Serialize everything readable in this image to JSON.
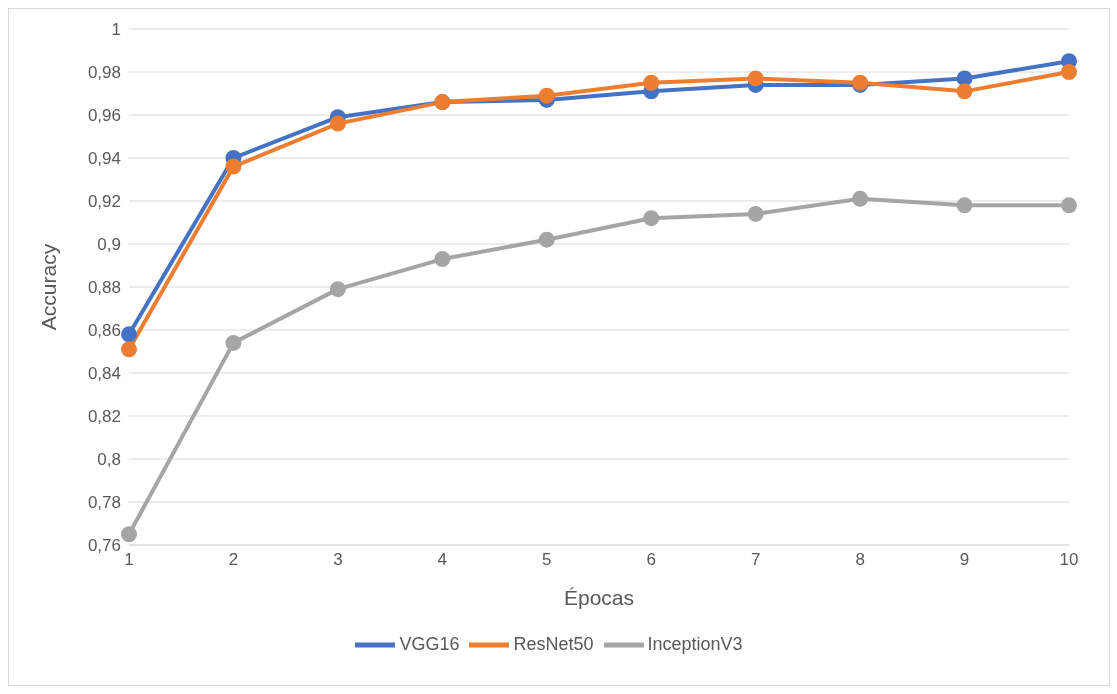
{
  "chart_data": {
    "type": "line",
    "xlabel": "Épocas",
    "ylabel": "Accuracy",
    "categories": [
      "1",
      "2",
      "3",
      "4",
      "5",
      "6",
      "7",
      "8",
      "9",
      "10"
    ],
    "series": [
      {
        "name": "VGG16",
        "color": "#4472c4",
        "values": [
          0.858,
          0.94,
          0.959,
          0.966,
          0.967,
          0.971,
          0.974,
          0.974,
          0.977,
          0.985
        ]
      },
      {
        "name": "ResNet50",
        "color": "#ed7d31",
        "values": [
          0.851,
          0.936,
          0.956,
          0.966,
          0.969,
          0.975,
          0.977,
          0.975,
          0.971,
          0.98
        ]
      },
      {
        "name": "InceptionV3",
        "color": "#a5a5a5",
        "values": [
          0.765,
          0.854,
          0.879,
          0.893,
          0.902,
          0.912,
          0.914,
          0.921,
          0.918,
          0.918
        ]
      }
    ],
    "ylim": [
      0.76,
      1
    ],
    "yticks": [
      {
        "value": 0.76,
        "label": "0,76"
      },
      {
        "value": 0.78,
        "label": "0,78"
      },
      {
        "value": 0.8,
        "label": "0,8"
      },
      {
        "value": 0.82,
        "label": "0,82"
      },
      {
        "value": 0.84,
        "label": "0,84"
      },
      {
        "value": 0.86,
        "label": "0,86"
      },
      {
        "value": 0.88,
        "label": "0,88"
      },
      {
        "value": 0.9,
        "label": "0,9"
      },
      {
        "value": 0.92,
        "label": "0,92"
      },
      {
        "value": 0.94,
        "label": "0,94"
      },
      {
        "value": 0.96,
        "label": "0,96"
      },
      {
        "value": 0.98,
        "label": "0,98"
      },
      {
        "value": 1,
        "label": "1"
      }
    ],
    "grid": "y",
    "legend": "bottom",
    "marker": "circle",
    "line_style": "solid"
  }
}
